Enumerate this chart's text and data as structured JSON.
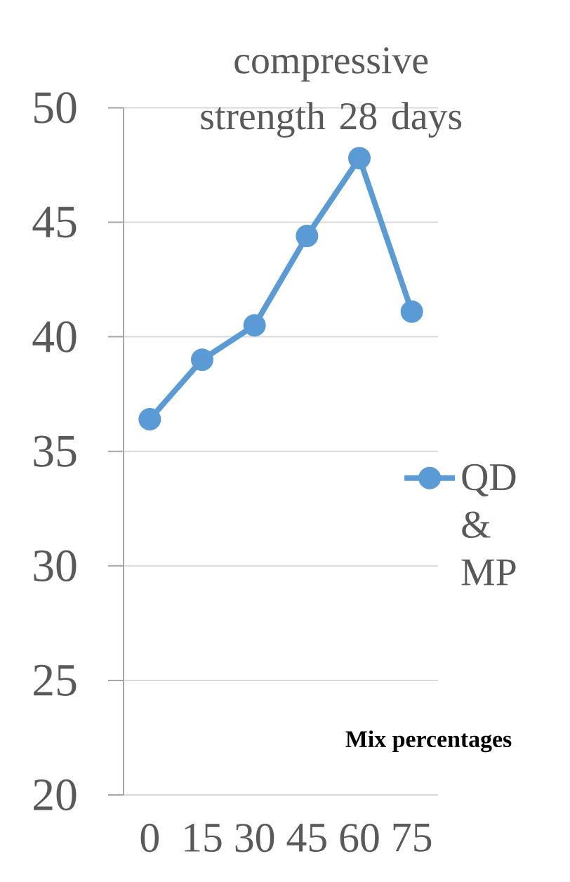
{
  "chart_data": {
    "type": "line",
    "title": "compressive strength 28 days",
    "xlabel": "Mix percentages",
    "categories": [
      "0",
      "15",
      "30",
      "45",
      "60",
      "75"
    ],
    "series": [
      {
        "name": "QD & MP",
        "color": "#5b9bd5",
        "values": [
          36.4,
          39.0,
          40.5,
          44.4,
          47.8,
          41.1
        ]
      }
    ],
    "ylim": [
      20,
      50
    ],
    "yticks": [
      20,
      25,
      30,
      35,
      40,
      45,
      50
    ],
    "grid": "y",
    "legend": "right",
    "marker": "circle",
    "line_style": "solid"
  }
}
